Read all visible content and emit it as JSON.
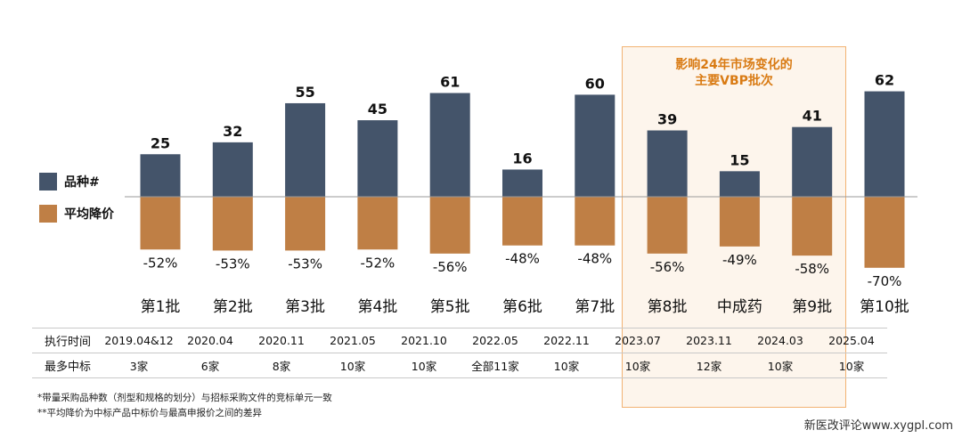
{
  "legend": {
    "count_label": "品种#",
    "price_label": "平均降价",
    "count_color": "#44546a",
    "price_color": "#bf7f45"
  },
  "highlight_text_line1": "影响24年市场变化的",
  "highlight_text_line2": "主要VBP批次",
  "chart_data": {
    "type": "bar",
    "categories": [
      "第1批",
      "第2批",
      "第3批",
      "第4批",
      "第5批",
      "第6批",
      "第7批",
      "第8批",
      "中成药",
      "第9批",
      "第10批"
    ],
    "series": [
      {
        "name": "品种#",
        "values": [
          25,
          32,
          55,
          45,
          61,
          16,
          60,
          39,
          15,
          41,
          62
        ]
      },
      {
        "name": "平均降价",
        "values": [
          -52,
          -53,
          -53,
          -52,
          -56,
          -48,
          -48,
          -56,
          -49,
          -58,
          -70
        ]
      }
    ],
    "value_labels_count": [
      "25",
      "32",
      "55",
      "45",
      "61",
      "16",
      "60",
      "39",
      "15",
      "41",
      "62"
    ],
    "value_labels_price": [
      "-52%",
      "-53%",
      "-53%",
      "-52%",
      "-56%",
      "-48%",
      "-48%",
      "-56%",
      "-49%",
      "-58%",
      "-70%"
    ]
  },
  "table": {
    "row1_head": "执行时间",
    "row1": [
      "2019.04&12",
      "2020.04",
      "2020.11",
      "2021.05",
      "2021.10",
      "2022.05",
      "2022.11",
      "2023.07",
      "2023.11",
      "2024.03",
      "2025.04"
    ],
    "row2_head": "最多中标",
    "row2": [
      "3家",
      "6家",
      "8家",
      "10家",
      "10家",
      "全部11家",
      "10家",
      "10家",
      "12家",
      "10家",
      "10家"
    ]
  },
  "footnotes": [
    "*带量采购品种数（剂型和规格的划分）与招标采购文件的竞标单元一致",
    "**平均降价为中标产品中标价与最高申报价之间的差异"
  ],
  "site": "新医改评论www.xygpl.com"
}
